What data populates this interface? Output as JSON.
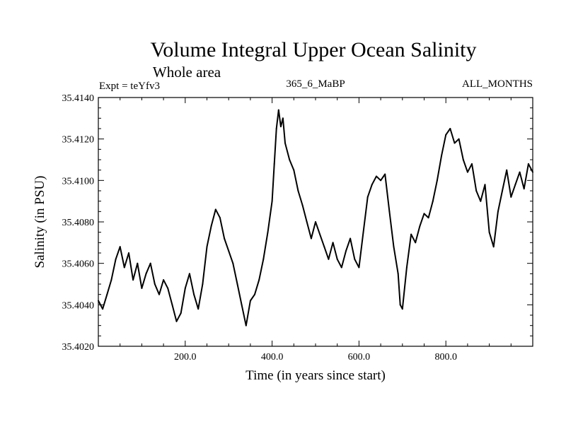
{
  "chart_data": {
    "type": "line",
    "title": "Volume Integral Upper Ocean Salinity",
    "subtitle": "Whole area",
    "left_label": "Expt = teYfv3",
    "center_label": "365_6_MaBP",
    "right_label": "ALL_MONTHS",
    "xlabel": "Time (in years since start)",
    "ylabel": "Salinity (in PSU)",
    "xlim": [
      0,
      1000
    ],
    "ylim": [
      35.402,
      35.414
    ],
    "x_ticks": [
      200,
      400,
      600,
      800
    ],
    "x_tick_labels": [
      "200.0",
      "400.0",
      "600.0",
      "800.0"
    ],
    "y_ticks": [
      35.402,
      35.404,
      35.406,
      35.408,
      35.41,
      35.412,
      35.414
    ],
    "y_tick_labels": [
      "35.4020",
      "35.4040",
      "35.4060",
      "35.4080",
      "35.4100",
      "35.4120",
      "35.4140"
    ],
    "grid": false,
    "series": [
      {
        "name": "salinity",
        "x": [
          0,
          10,
          20,
          30,
          40,
          50,
          60,
          70,
          80,
          90,
          100,
          110,
          120,
          130,
          140,
          150,
          160,
          170,
          180,
          190,
          200,
          210,
          220,
          230,
          240,
          250,
          260,
          270,
          280,
          290,
          300,
          310,
          320,
          330,
          340,
          350,
          360,
          370,
          380,
          390,
          400,
          405,
          410,
          415,
          420,
          425,
          430,
          440,
          450,
          460,
          470,
          480,
          490,
          500,
          510,
          520,
          530,
          540,
          550,
          560,
          570,
          580,
          590,
          600,
          610,
          620,
          630,
          640,
          650,
          660,
          670,
          680,
          690,
          695,
          700,
          710,
          720,
          730,
          740,
          750,
          760,
          770,
          780,
          790,
          800,
          810,
          820,
          830,
          840,
          850,
          860,
          870,
          880,
          890,
          900,
          910,
          920,
          930,
          940,
          950,
          960,
          970,
          980,
          990,
          1000
        ],
        "values": [
          35.4042,
          35.4038,
          35.4045,
          35.4052,
          35.4062,
          35.4068,
          35.4058,
          35.4065,
          35.4052,
          35.406,
          35.4048,
          35.4055,
          35.406,
          35.405,
          35.4045,
          35.4052,
          35.4048,
          35.404,
          35.4032,
          35.4036,
          35.4048,
          35.4055,
          35.4045,
          35.4038,
          35.405,
          35.4068,
          35.4078,
          35.4086,
          35.4082,
          35.4072,
          35.4066,
          35.406,
          35.405,
          35.404,
          35.403,
          35.4042,
          35.4045,
          35.4052,
          35.4062,
          35.4075,
          35.409,
          35.4108,
          35.4125,
          35.4134,
          35.4126,
          35.413,
          35.4118,
          35.411,
          35.4105,
          35.4095,
          35.4088,
          35.408,
          35.4072,
          35.408,
          35.4074,
          35.4068,
          35.4062,
          35.407,
          35.4062,
          35.4058,
          35.4066,
          35.4072,
          35.4062,
          35.4058,
          35.4075,
          35.4092,
          35.4098,
          35.4102,
          35.41,
          35.4103,
          35.4085,
          35.4068,
          35.4055,
          35.404,
          35.4038,
          35.4058,
          35.4074,
          35.407,
          35.4078,
          35.4084,
          35.4082,
          35.409,
          35.41,
          35.4112,
          35.4122,
          35.4125,
          35.4118,
          35.412,
          35.411,
          35.4104,
          35.4108,
          35.4095,
          35.409,
          35.4098,
          35.4075,
          35.4068,
          35.4085,
          35.4095,
          35.4105,
          35.4092,
          35.4098,
          35.4104,
          35.4096,
          35.4108,
          35.4104
        ]
      }
    ]
  }
}
